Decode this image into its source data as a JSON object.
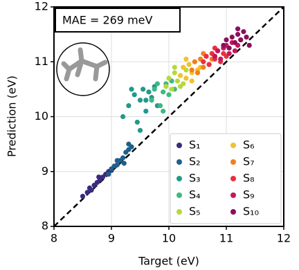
{
  "chart_data": {
    "type": "scatter",
    "xlabel": "Target (eV)",
    "ylabel": "Prediction (eV)",
    "annotation": "MAE = 269 meV",
    "xlim": [
      8,
      12
    ],
    "ylim": [
      8,
      12
    ],
    "xticks": [
      8,
      9,
      10,
      11,
      12
    ],
    "yticks": [
      8,
      9,
      10,
      11,
      12
    ],
    "grid": true,
    "legend": "lower right",
    "series": [
      {
        "name": "S₁",
        "color": "#3b2a7e",
        "x": [
          8.5,
          8.58,
          8.62,
          8.7,
          8.75,
          8.8,
          8.85,
          8.9,
          8.95,
          9.0,
          8.65,
          8.78
        ],
        "y": [
          8.55,
          8.62,
          8.7,
          8.75,
          8.8,
          8.85,
          8.9,
          8.95,
          9.0,
          9.02,
          8.66,
          8.9
        ]
      },
      {
        "name": "S₂",
        "color": "#1f5f8b",
        "x": [
          8.95,
          9.0,
          9.05,
          9.1,
          9.15,
          9.2,
          9.25,
          9.3,
          9.35,
          9.1,
          9.22,
          9.3
        ],
        "y": [
          8.95,
          9.05,
          9.1,
          9.12,
          9.2,
          9.25,
          9.35,
          9.4,
          9.45,
          9.2,
          9.15,
          9.5
        ]
      },
      {
        "name": "S₃",
        "color": "#21998a",
        "x": [
          9.2,
          9.3,
          9.4,
          9.45,
          9.5,
          9.55,
          9.6,
          9.65,
          9.7,
          9.75,
          9.35,
          9.5,
          9.6,
          9.8
        ],
        "y": [
          10.0,
          10.2,
          10.4,
          9.9,
          10.3,
          10.5,
          10.1,
          10.45,
          10.35,
          10.55,
          10.5,
          9.75,
          10.3,
          10.2
        ]
      },
      {
        "name": "S₄",
        "color": "#3fb884",
        "x": [
          9.7,
          9.75,
          9.8,
          9.85,
          9.9,
          9.95,
          10.0,
          10.05,
          10.1,
          9.9
        ],
        "y": [
          10.3,
          10.5,
          10.6,
          10.2,
          10.45,
          10.6,
          10.4,
          10.65,
          10.5,
          10.1
        ]
      },
      {
        "name": "S₅",
        "color": "#b5d93a",
        "x": [
          9.95,
          10.0,
          10.05,
          10.1,
          10.15,
          10.2,
          10.25,
          10.3,
          10.1,
          10.2
        ],
        "y": [
          10.55,
          10.7,
          10.5,
          10.8,
          10.65,
          10.75,
          10.6,
          10.85,
          10.9,
          10.55
        ]
      },
      {
        "name": "S₆",
        "color": "#f2c12e",
        "x": [
          10.2,
          10.25,
          10.3,
          10.35,
          10.4,
          10.45,
          10.5,
          10.55,
          10.3,
          10.4
        ],
        "y": [
          10.75,
          10.9,
          10.7,
          10.95,
          10.8,
          11.0,
          10.85,
          10.9,
          11.05,
          10.65
        ]
      },
      {
        "name": "S₇",
        "color": "#f07f1e",
        "x": [
          10.4,
          10.45,
          10.5,
          10.55,
          10.6,
          10.65,
          10.7,
          10.75,
          10.8,
          10.6
        ],
        "y": [
          10.85,
          11.0,
          10.8,
          11.05,
          10.9,
          11.1,
          10.95,
          11.05,
          11.1,
          11.15
        ]
      },
      {
        "name": "S₈",
        "color": "#e8303f",
        "x": [
          10.6,
          10.65,
          10.7,
          10.75,
          10.8,
          10.85,
          10.9,
          10.95,
          11.0,
          10.8
        ],
        "y": [
          11.0,
          11.1,
          10.95,
          11.15,
          11.05,
          11.2,
          11.0,
          11.15,
          11.1,
          11.25
        ]
      },
      {
        "name": "S₉",
        "color": "#c2185b",
        "x": [
          10.8,
          10.85,
          10.9,
          10.95,
          11.0,
          11.05,
          11.1,
          11.15,
          11.2,
          11.25
        ],
        "y": [
          11.1,
          11.2,
          11.05,
          11.25,
          11.3,
          11.15,
          11.35,
          11.2,
          11.3,
          11.4
        ]
      },
      {
        "name": "S₁₀",
        "color": "#8b0f5e",
        "x": [
          10.95,
          11.0,
          11.05,
          11.1,
          11.15,
          11.2,
          11.25,
          11.3,
          11.35,
          11.4,
          11.2
        ],
        "y": [
          11.3,
          11.4,
          11.25,
          11.45,
          11.35,
          11.5,
          11.4,
          11.55,
          11.45,
          11.3,
          11.6
        ]
      }
    ]
  }
}
